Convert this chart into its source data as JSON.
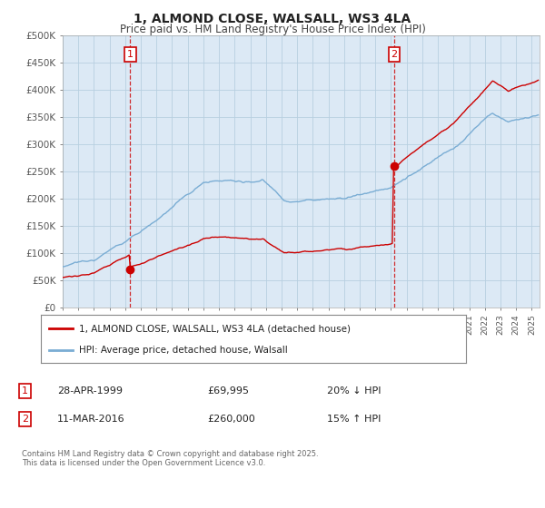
{
  "title": "1, ALMOND CLOSE, WALSALL, WS3 4LA",
  "subtitle": "Price paid vs. HM Land Registry's House Price Index (HPI)",
  "line1_label": "1, ALMOND CLOSE, WALSALL, WS3 4LA (detached house)",
  "line1_color": "#cc0000",
  "line2_label": "HPI: Average price, detached house, Walsall",
  "line2_color": "#7aadd4",
  "marker1_date": "28-APR-1999",
  "marker1_price": "£69,995",
  "marker1_hpi": "20% ↓ HPI",
  "marker1_x": 1999.32,
  "marker1_y": 69995,
  "marker2_date": "11-MAR-2016",
  "marker2_price": "£260,000",
  "marker2_hpi": "15% ↑ HPI",
  "marker2_x": 2016.2,
  "marker2_y": 260000,
  "xmin": 1995,
  "xmax": 2025.5,
  "ymin": 0,
  "ymax": 500000,
  "yticks": [
    0,
    50000,
    100000,
    150000,
    200000,
    250000,
    300000,
    350000,
    400000,
    450000,
    500000
  ],
  "plot_bg_color": "#dce9f5",
  "footnote": "Contains HM Land Registry data © Crown copyright and database right 2025.\nThis data is licensed under the Open Government Licence v3.0.",
  "background_color": "#ffffff",
  "grid_color": "#b8cfe0"
}
